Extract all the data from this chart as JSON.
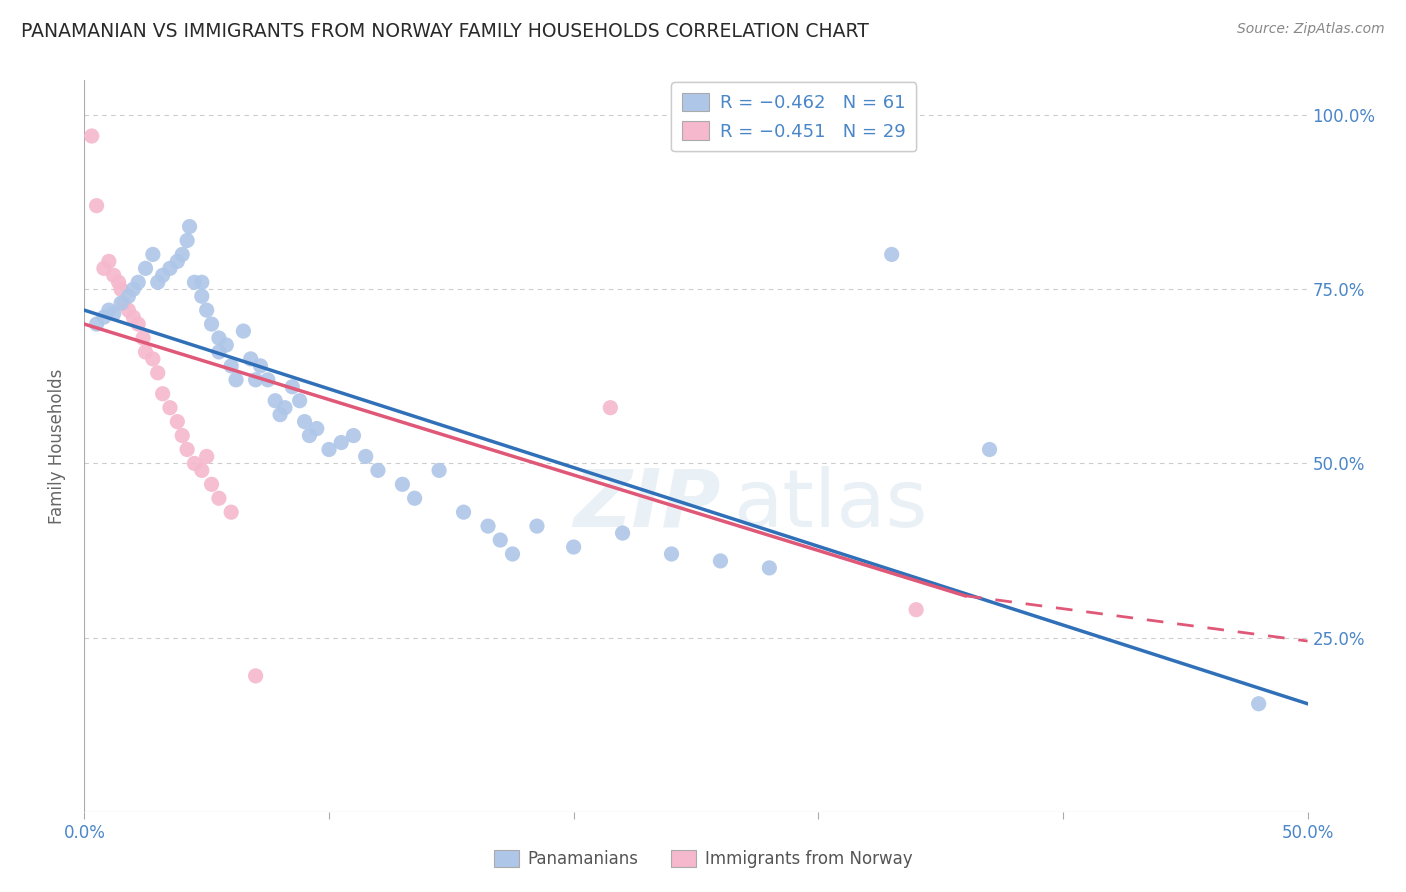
{
  "title": "PANAMANIAN VS IMMIGRANTS FROM NORWAY FAMILY HOUSEHOLDS CORRELATION CHART",
  "source": "Source: ZipAtlas.com",
  "ylabel": "Family Households",
  "xmin": 0.0,
  "xmax": 0.5,
  "ymin": 0.0,
  "ymax": 1.05,
  "blue_color": "#aec6e8",
  "pink_color": "#f5b8cc",
  "blue_line_color": "#3070b8",
  "pink_line_color": "#e05878",
  "blue_scatter": [
    [
      0.005,
      0.7
    ],
    [
      0.008,
      0.71
    ],
    [
      0.01,
      0.72
    ],
    [
      0.012,
      0.715
    ],
    [
      0.015,
      0.73
    ],
    [
      0.018,
      0.74
    ],
    [
      0.02,
      0.75
    ],
    [
      0.022,
      0.76
    ],
    [
      0.025,
      0.78
    ],
    [
      0.028,
      0.8
    ],
    [
      0.03,
      0.76
    ],
    [
      0.032,
      0.77
    ],
    [
      0.035,
      0.78
    ],
    [
      0.038,
      0.79
    ],
    [
      0.04,
      0.8
    ],
    [
      0.042,
      0.82
    ],
    [
      0.043,
      0.84
    ],
    [
      0.045,
      0.76
    ],
    [
      0.048,
      0.76
    ],
    [
      0.048,
      0.74
    ],
    [
      0.05,
      0.72
    ],
    [
      0.052,
      0.7
    ],
    [
      0.055,
      0.68
    ],
    [
      0.055,
      0.66
    ],
    [
      0.058,
      0.67
    ],
    [
      0.06,
      0.64
    ],
    [
      0.062,
      0.62
    ],
    [
      0.065,
      0.69
    ],
    [
      0.068,
      0.65
    ],
    [
      0.07,
      0.62
    ],
    [
      0.072,
      0.64
    ],
    [
      0.075,
      0.62
    ],
    [
      0.078,
      0.59
    ],
    [
      0.08,
      0.57
    ],
    [
      0.082,
      0.58
    ],
    [
      0.085,
      0.61
    ],
    [
      0.088,
      0.59
    ],
    [
      0.09,
      0.56
    ],
    [
      0.092,
      0.54
    ],
    [
      0.095,
      0.55
    ],
    [
      0.1,
      0.52
    ],
    [
      0.105,
      0.53
    ],
    [
      0.11,
      0.54
    ],
    [
      0.115,
      0.51
    ],
    [
      0.12,
      0.49
    ],
    [
      0.13,
      0.47
    ],
    [
      0.135,
      0.45
    ],
    [
      0.145,
      0.49
    ],
    [
      0.155,
      0.43
    ],
    [
      0.165,
      0.41
    ],
    [
      0.17,
      0.39
    ],
    [
      0.175,
      0.37
    ],
    [
      0.185,
      0.41
    ],
    [
      0.2,
      0.38
    ],
    [
      0.22,
      0.4
    ],
    [
      0.24,
      0.37
    ],
    [
      0.26,
      0.36
    ],
    [
      0.28,
      0.35
    ],
    [
      0.33,
      0.8
    ],
    [
      0.37,
      0.52
    ],
    [
      0.48,
      0.155
    ]
  ],
  "pink_scatter": [
    [
      0.003,
      0.97
    ],
    [
      0.005,
      0.87
    ],
    [
      0.008,
      0.78
    ],
    [
      0.01,
      0.79
    ],
    [
      0.012,
      0.77
    ],
    [
      0.014,
      0.76
    ],
    [
      0.015,
      0.75
    ],
    [
      0.016,
      0.73
    ],
    [
      0.018,
      0.72
    ],
    [
      0.02,
      0.71
    ],
    [
      0.022,
      0.7
    ],
    [
      0.024,
      0.68
    ],
    [
      0.025,
      0.66
    ],
    [
      0.028,
      0.65
    ],
    [
      0.03,
      0.63
    ],
    [
      0.032,
      0.6
    ],
    [
      0.035,
      0.58
    ],
    [
      0.038,
      0.56
    ],
    [
      0.04,
      0.54
    ],
    [
      0.042,
      0.52
    ],
    [
      0.045,
      0.5
    ],
    [
      0.048,
      0.49
    ],
    [
      0.05,
      0.51
    ],
    [
      0.052,
      0.47
    ],
    [
      0.055,
      0.45
    ],
    [
      0.06,
      0.43
    ],
    [
      0.07,
      0.195
    ],
    [
      0.215,
      0.58
    ],
    [
      0.34,
      0.29
    ]
  ],
  "blue_line": {
    "x0": 0.0,
    "y0": 0.72,
    "x1": 0.5,
    "y1": 0.155
  },
  "pink_line_solid": {
    "x0": 0.0,
    "y0": 0.7,
    "x1": 0.36,
    "y1": 0.31
  },
  "pink_line_dash": {
    "x0": 0.36,
    "y0": 0.31,
    "x1": 0.5,
    "y1": 0.245
  },
  "grid_color": "#cccccc",
  "background_color": "#ffffff",
  "tick_color": "#4a86c8",
  "text_color": "#333333",
  "source_color": "#888888"
}
